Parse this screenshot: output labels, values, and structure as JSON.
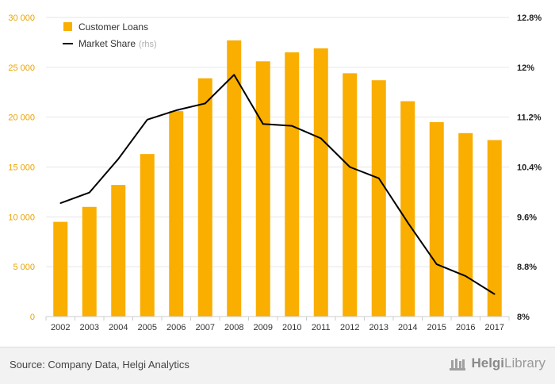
{
  "chart_data": {
    "type": "bar",
    "categories": [
      "2002",
      "2003",
      "2004",
      "2005",
      "2006",
      "2007",
      "2008",
      "2009",
      "2010",
      "2011",
      "2012",
      "2013",
      "2014",
      "2015",
      "2016",
      "2017"
    ],
    "series": [
      {
        "name": "Customer Loans",
        "type": "bar",
        "axis": "left",
        "color": "#f9ae00",
        "values": [
          9500,
          11000,
          13200,
          16300,
          20600,
          23900,
          27700,
          25600,
          26500,
          26900,
          24400,
          23700,
          21600,
          19500,
          18400,
          17700
        ]
      },
      {
        "name": "Market Share",
        "name_suffix": "(rhs)",
        "type": "line",
        "axis": "right",
        "color": "#000000",
        "values": [
          9.82,
          9.99,
          10.53,
          11.16,
          11.31,
          11.42,
          11.88,
          11.09,
          11.06,
          10.86,
          10.4,
          10.22,
          9.51,
          8.84,
          8.65,
          8.36
        ]
      }
    ],
    "ylim": [
      0,
      30000
    ],
    "yticks": [
      "0",
      "5 000",
      "10 000",
      "15 000",
      "20 000",
      "25 000",
      "30 000"
    ],
    "ylim_right": [
      8,
      12.8
    ],
    "yticks_right": [
      "8%",
      "8.8%",
      "9.6%",
      "10.4%",
      "11.2%",
      "12%",
      "12.8%"
    ],
    "grid": true,
    "legend_position": "top-left"
  },
  "footer": {
    "source": "Source: Company Data, Helgi Analytics",
    "brand_part1": "Helgi",
    "brand_part2": "Library"
  }
}
